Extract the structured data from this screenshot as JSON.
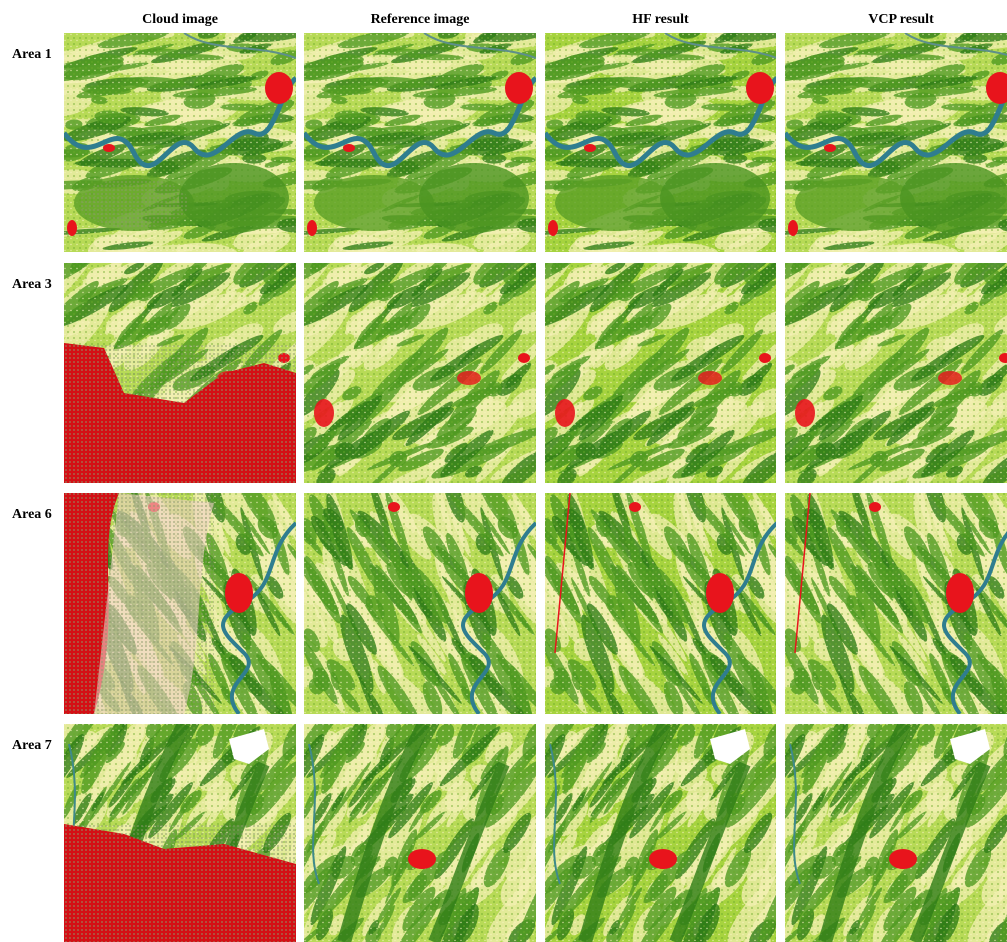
{
  "column_headers": [
    "Cloud image",
    "Reference image",
    "HF result",
    "VCP result"
  ],
  "row_labels": [
    "Area 1",
    "Area 3",
    "Area 6",
    "Area 7"
  ]
}
